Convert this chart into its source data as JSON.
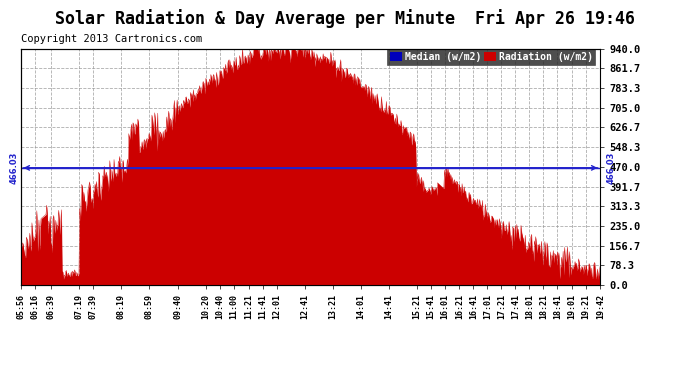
{
  "title": "Solar Radiation & Day Average per Minute  Fri Apr 26 19:46",
  "copyright": "Copyright 2013 Cartronics.com",
  "ylabel_right": [
    "940.0",
    "861.7",
    "783.3",
    "705.0",
    "626.7",
    "548.3",
    "470.0",
    "391.7",
    "313.3",
    "235.0",
    "156.7",
    "78.3",
    "0.0"
  ],
  "ylabel_right_vals": [
    940.0,
    861.7,
    783.3,
    705.0,
    626.7,
    548.3,
    470.0,
    391.7,
    313.3,
    235.0,
    156.7,
    78.3,
    0.0
  ],
  "ylim": [
    0.0,
    940.0
  ],
  "median_val": 466.03,
  "legend_median_color": "#0000bb",
  "legend_radiation_color": "#cc0000",
  "fill_color": "#cc0000",
  "line_color": "#cc0000",
  "median_line_color": "#2222cc",
  "bg_color": "#ffffff",
  "grid_color": "#999999",
  "title_fontsize": 12,
  "copyright_fontsize": 7.5,
  "xtick_labels": [
    "05:56",
    "06:16",
    "06:39",
    "07:19",
    "07:39",
    "08:19",
    "08:59",
    "09:40",
    "10:20",
    "10:40",
    "11:00",
    "11:21",
    "11:41",
    "12:01",
    "12:41",
    "13:21",
    "14:01",
    "14:41",
    "15:21",
    "15:41",
    "16:01",
    "16:21",
    "16:41",
    "17:01",
    "17:21",
    "17:41",
    "18:01",
    "18:21",
    "18:41",
    "19:01",
    "19:21",
    "19:42"
  ]
}
